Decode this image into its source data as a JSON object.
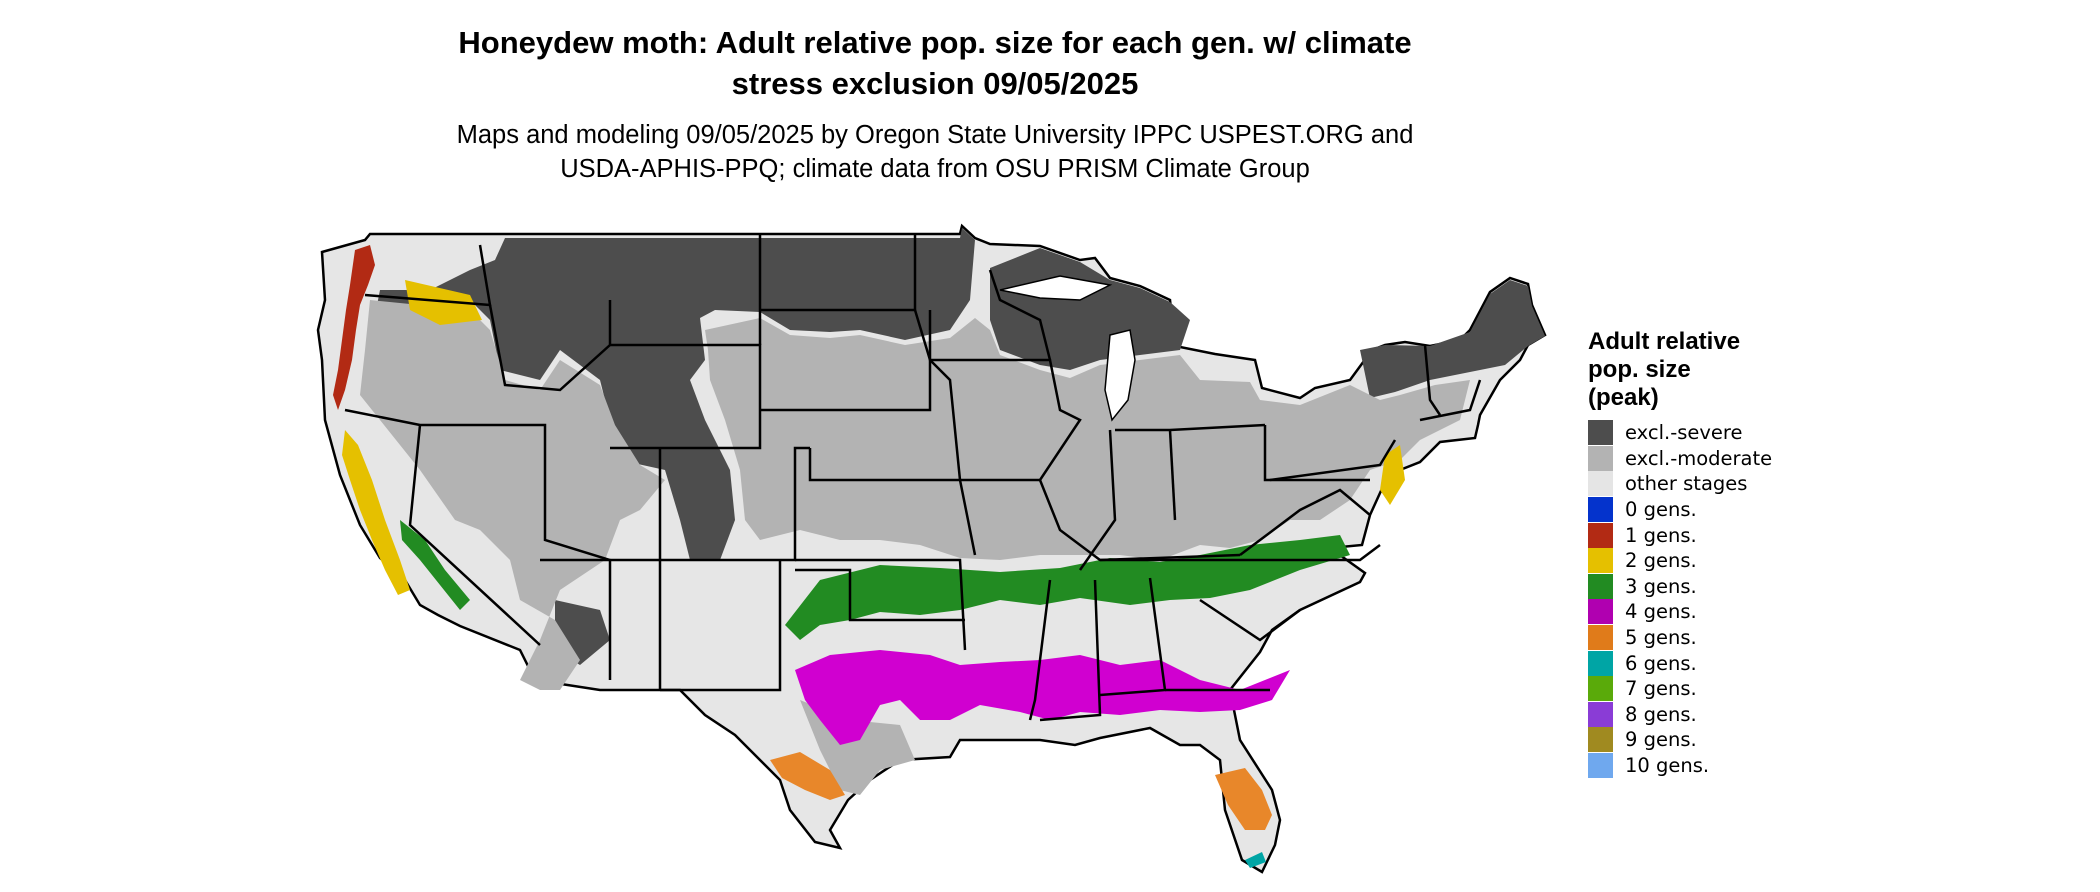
{
  "title_lines": [
    "Honeydew moth: Adult relative pop. size for each gen. w/ climate",
    "stress exclusion 09/05/2025"
  ],
  "subtitle_lines": [
    "Maps and modeling 09/05/2025 by Oregon State University IPPC USPEST.ORG and",
    "USDA-APHIS-PPQ; climate data from OSU PRISM Climate Group"
  ],
  "legend": {
    "title_lines": [
      "Adult relative",
      "pop. size",
      "(peak)"
    ],
    "items": [
      {
        "label": "excl.-severe",
        "color": "#4d4d4d"
      },
      {
        "label": "excl.-moderate",
        "color": "#b3b3b3"
      },
      {
        "label": "other stages",
        "color": "#e5e5e5"
      },
      {
        "label": "0 gens.",
        "color": "#0433cc"
      },
      {
        "label": "1 gens.",
        "color": "#b22a14"
      },
      {
        "label": "2 gens.",
        "color": "#e5c000"
      },
      {
        "label": "3 gens.",
        "color": "#228b22"
      },
      {
        "label": "4 gens.",
        "color": "#b000b0"
      },
      {
        "label": "5 gens.",
        "color": "#e07b1a"
      },
      {
        "label": "6 gens.",
        "color": "#00a5a5"
      },
      {
        "label": "7 gens.",
        "color": "#5aaa0a"
      },
      {
        "label": "8 gens.",
        "color": "#8a3cd6"
      },
      {
        "label": "9 gens.",
        "color": "#a08a20"
      },
      {
        "label": "10 gens.",
        "color": "#6fa8ee"
      }
    ]
  }
}
